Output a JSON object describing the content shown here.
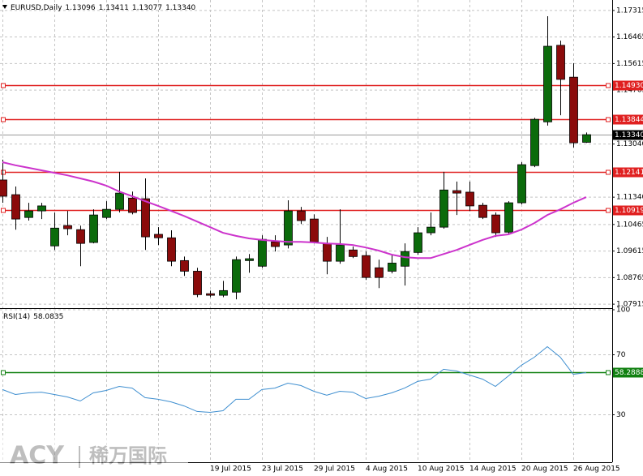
{
  "chart_data": [
    {
      "type": "candlestick",
      "title": "EURUSD,Daily",
      "header_values": [
        "1.13096",
        "1.13411",
        "1.13077",
        "1.13340"
      ],
      "categories": [
        null,
        null,
        null,
        null,
        null,
        null,
        null,
        null,
        null,
        null,
        null,
        null,
        null,
        null,
        null,
        null,
        "19 Jul 2015",
        null,
        null,
        null,
        "23 Jul 2015",
        null,
        null,
        null,
        "29 Jul 2015",
        null,
        null,
        null,
        "4 Aug 2015",
        null,
        null,
        null,
        "10 Aug 2015",
        null,
        null,
        null,
        "14 Aug 2015",
        null,
        null,
        null,
        "20 Aug 2015",
        null,
        null,
        null,
        "26 Aug 2015",
        null
      ],
      "open": [
        1.1189,
        1.1142,
        1.1069,
        1.109,
        1.0978,
        1.1043,
        1.103,
        1.0989,
        1.1069,
        1.1095,
        1.1131,
        1.1129,
        1.1015,
        1.1004,
        1.0931,
        1.0897,
        1.0825,
        1.082,
        1.083,
        1.0931,
        1.0913,
        1.0991,
        1.0981,
        1.109,
        1.1064,
        1.0986,
        1.0929,
        1.0965,
        1.0947,
        1.0908,
        1.0897,
        1.0913,
        1.0957,
        1.102,
        1.1038,
        1.1155,
        1.115,
        1.1108,
        1.1077,
        1.1022,
        1.1116,
        1.1235,
        1.1375,
        1.162,
        1.1518,
        1.13096
      ],
      "high": [
        1.1254,
        1.1168,
        1.1116,
        1.1116,
        1.1085,
        1.109,
        1.1043,
        1.1095,
        1.1121,
        1.1215,
        1.1152,
        1.1194,
        1.1038,
        1.1028,
        1.0944,
        1.0908,
        1.0835,
        1.0866,
        1.0944,
        1.0952,
        1.1012,
        1.1012,
        1.1124,
        1.1103,
        1.1079,
        1.1007,
        1.1095,
        1.0976,
        1.096,
        1.0934,
        1.095,
        1.0986,
        1.1038,
        1.1085,
        1.1215,
        1.1184,
        1.1184,
        1.1116,
        1.1085,
        1.1121,
        1.1246,
        1.1388,
        1.1713,
        1.1635,
        1.1563,
        1.13411
      ],
      "low": [
        1.1116,
        1.103,
        1.1059,
        1.1064,
        1.0965,
        1.1012,
        1.0913,
        1.0986,
        1.1064,
        1.1085,
        1.1079,
        1.0965,
        1.0981,
        1.0913,
        1.0882,
        1.0814,
        1.0814,
        1.0814,
        1.0807,
        1.0892,
        1.0908,
        1.096,
        1.097,
        1.1048,
        1.0986,
        1.0887,
        1.0921,
        1.0939,
        1.0869,
        1.0843,
        1.089,
        1.0851,
        1.095,
        1.1012,
        1.1033,
        1.1077,
        1.109,
        1.1064,
        1.1007,
        1.1017,
        1.1111,
        1.123,
        1.1363,
        1.1396,
        1.1293,
        1.13077
      ],
      "close": [
        1.1137,
        1.1064,
        1.109,
        1.1106,
        1.1035,
        1.1033,
        1.0986,
        1.1077,
        1.1095,
        1.1147,
        1.1085,
        1.1007,
        1.1004,
        1.0929,
        1.0897,
        1.0822,
        1.082,
        1.0835,
        1.0934,
        1.0937,
        1.0999,
        1.0976,
        1.109,
        1.1059,
        1.0991,
        1.0929,
        1.0981,
        1.0944,
        1.0877,
        1.0877,
        1.0923,
        1.096,
        1.102,
        1.1038,
        1.1157,
        1.1147,
        1.1106,
        1.1069,
        1.102,
        1.1116,
        1.1238,
        1.1383,
        1.1617,
        1.1511,
        1.1308,
        1.1334
      ],
      "up_color": "#0b6b0b",
      "down_color": "#8b0b0b",
      "ma": {
        "color": "#cc33cc",
        "values": [
          1.1246,
          1.1236,
          1.1228,
          1.122,
          1.1212,
          1.1204,
          1.1194,
          1.1184,
          1.1171,
          1.1152,
          1.1137,
          1.1121,
          1.1106,
          1.109,
          1.1074,
          1.1056,
          1.1038,
          1.102,
          1.101,
          1.1002,
          1.0997,
          1.0994,
          1.0991,
          1.0991,
          1.0989,
          1.0986,
          1.0984,
          1.0981,
          1.0973,
          1.0963,
          1.095,
          1.0942,
          1.0939,
          1.0939,
          1.0952,
          1.0965,
          1.0981,
          1.0997,
          1.101,
          1.1015,
          1.103,
          1.1051,
          1.1077,
          1.1095,
          1.1116,
          1.1134
        ]
      },
      "ylim": [
        1.0784,
        1.1765
      ],
      "yticks": [
        1.07915,
        1.08765,
        1.09615,
        1.10465,
        {
          "value": 1.1134,
          "label": "1.11340"
        },
        {
          "value": 1.1304,
          "label": "1.13040"
        },
        1.14765,
        1.15615,
        1.16465,
        1.17315
      ],
      "levels": [
        {
          "value": 1.1493,
          "label": "1.14930"
        },
        {
          "value": 1.13844,
          "label": "1.13844"
        },
        {
          "value": 1.12141,
          "label": "1.12141"
        },
        {
          "value": 1.10919,
          "label": "1.10919"
        }
      ],
      "level_color": "#e02020",
      "current_price": {
        "value": 1.1334,
        "label": "1.13340"
      },
      "grid": true
    },
    {
      "type": "line",
      "title": "RSI(14)",
      "current": 58.0835,
      "color": "#3f8fd0",
      "values": [
        46.8,
        43.5,
        44.6,
        45.1,
        43.5,
        41.9,
        39.2,
        44.6,
        46.2,
        48.9,
        47.8,
        41.4,
        40.3,
        38.6,
        35.9,
        32.2,
        31.6,
        32.7,
        40.3,
        40.3,
        46.8,
        47.8,
        51.1,
        49.5,
        45.7,
        43.0,
        45.7,
        45.1,
        40.8,
        42.4,
        44.6,
        47.8,
        52.2,
        53.8,
        60.3,
        59.2,
        56.5,
        53.8,
        48.9,
        55.9,
        63.0,
        68.4,
        75.4,
        68.4,
        57.0,
        58.0835
      ],
      "ylim": [
        0,
        100
      ],
      "yticks": [
        30,
        70,
        100
      ],
      "levels": [
        {
          "value": 58.2888,
          "label": "58.2888"
        }
      ],
      "level_color": "#108010",
      "grid": true
    }
  ],
  "watermark": {
    "brand": "ACY",
    "name": "稀万国际"
  }
}
